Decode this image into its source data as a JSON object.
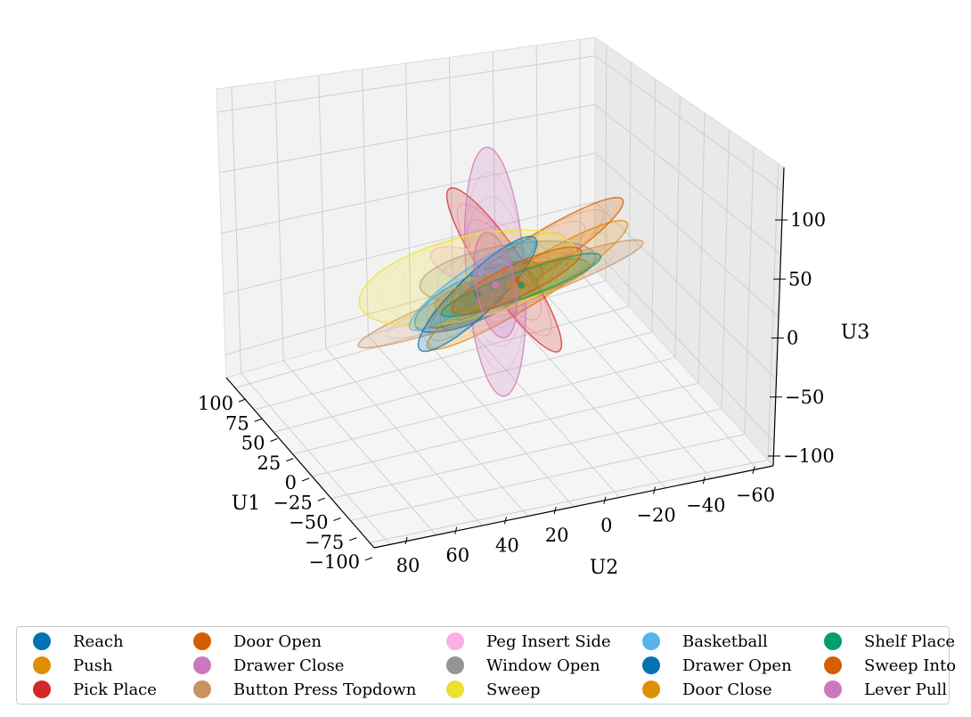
{
  "chart_data": {
    "type": "scatter",
    "projection": "3d",
    "xlabel": "U1",
    "ylabel": "U2",
    "zlabel": "U3",
    "xlim": [
      -100,
      100
    ],
    "ylim": [
      -70,
      80
    ],
    "zlim": [
      -100,
      120
    ],
    "x_ticks": [
      "100",
      "75",
      "50",
      "25",
      "0",
      "−25",
      "−50",
      "−75",
      "−100"
    ],
    "y_ticks": [
      "80",
      "60",
      "40",
      "20",
      "0",
      "−20",
      "−40",
      "−60"
    ],
    "z_ticks": [
      "100",
      "50",
      "0",
      "−50",
      "−100"
    ],
    "grid": true,
    "legend_position": "bottom",
    "series": [
      {
        "name": "Reach",
        "color": "#0173b2"
      },
      {
        "name": "Push",
        "color": "#de8f05"
      },
      {
        "name": "Pick Place",
        "color": "#d62728"
      },
      {
        "name": "Door Open",
        "color": "#d55e00"
      },
      {
        "name": "Drawer Close",
        "color": "#cc78bc"
      },
      {
        "name": "Button Press Topdown",
        "color": "#ca9161"
      },
      {
        "name": "Peg Insert Side",
        "color": "#fbafe4"
      },
      {
        "name": "Window Open",
        "color": "#949494"
      },
      {
        "name": "Sweep",
        "color": "#ece133"
      },
      {
        "name": "Basketball",
        "color": "#56b4e9"
      },
      {
        "name": "Drawer Open",
        "color": "#0173b2"
      },
      {
        "name": "Door Close",
        "color": "#de8f05"
      },
      {
        "name": "Shelf Place",
        "color": "#029e73"
      },
      {
        "name": "Sweep Into",
        "color": "#d55e00"
      },
      {
        "name": "Lever Pull",
        "color": "#cc78bc"
      }
    ]
  }
}
